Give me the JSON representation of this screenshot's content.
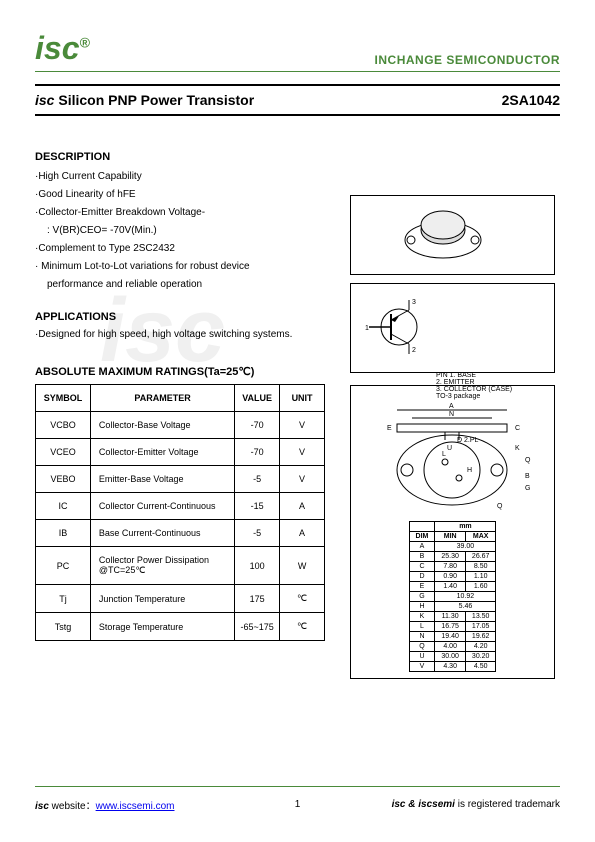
{
  "header": {
    "logo_text": "isc",
    "logo_sup": "®",
    "company": "INCHANGE SEMICONDUCTOR"
  },
  "title": {
    "prefix": "isc",
    "main": " Silicon PNP Power Transistor",
    "part": "2SA1042"
  },
  "description": {
    "heading": "DESCRIPTION",
    "items": [
      "·High Current Capability",
      "·Good Linearity of hFE",
      "·Collector-Emitter Breakdown Voltage-",
      ": V(BR)CEO= -70V(Min.)",
      "·Complement to Type 2SC2432",
      "· Minimum Lot-to-Lot variations for robust device",
      "performance and reliable operation"
    ]
  },
  "applications": {
    "heading": "APPLICATIONS",
    "text": "·Designed for high speed, high voltage switching systems."
  },
  "ratings": {
    "heading": "ABSOLUTE MAXIMUM RATINGS(Ta=25℃)",
    "columns": [
      "SYMBOL",
      "PARAMETER",
      "VALUE",
      "UNIT"
    ],
    "rows": [
      {
        "sym": "VCBO",
        "param": "Collector-Base Voltage",
        "val": "-70",
        "unit": "V"
      },
      {
        "sym": "VCEO",
        "param": "Collector-Emitter Voltage",
        "val": "-70",
        "unit": "V"
      },
      {
        "sym": "VEBO",
        "param": "Emitter-Base Voltage",
        "val": "-5",
        "unit": "V"
      },
      {
        "sym": "IC",
        "param": "Collector Current-Continuous",
        "val": "-15",
        "unit": "A"
      },
      {
        "sym": "IB",
        "param": "Base Current-Continuous",
        "val": "-5",
        "unit": "A"
      },
      {
        "sym": "PC",
        "param": "Collector Power Dissipation @TC=25℃",
        "val": "100",
        "unit": "W"
      },
      {
        "sym": "Tj",
        "param": "Junction Temperature",
        "val": "175",
        "unit": "℃"
      },
      {
        "sym": "Tstg",
        "param": "Storage Temperature",
        "val": "-65~175",
        "unit": "℃"
      }
    ]
  },
  "pinout": {
    "pins": [
      "PIN 1. BASE",
      "2. EMITTER",
      "3. COLLECTOR (CASE)"
    ],
    "pkg": "TO-3 package"
  },
  "dimensions": {
    "unit_label": "mm",
    "columns": [
      "DIM",
      "MIN",
      "MAX"
    ],
    "rows": [
      {
        "dim": "A",
        "min": "",
        "max": "39.00",
        "span": true
      },
      {
        "dim": "B",
        "min": "25.30",
        "max": "26.67"
      },
      {
        "dim": "C",
        "min": "7.80",
        "max": "8.50"
      },
      {
        "dim": "D",
        "min": "0.90",
        "max": "1.10"
      },
      {
        "dim": "E",
        "min": "1.40",
        "max": "1.60"
      },
      {
        "dim": "G",
        "min": "",
        "max": "10.92",
        "span": true
      },
      {
        "dim": "H",
        "min": "",
        "max": "5.46",
        "span": true
      },
      {
        "dim": "K",
        "min": "11.30",
        "max": "13.50"
      },
      {
        "dim": "L",
        "min": "16.75",
        "max": "17.05"
      },
      {
        "dim": "N",
        "min": "19.40",
        "max": "19.62"
      },
      {
        "dim": "Q",
        "min": "4.00",
        "max": "4.20"
      },
      {
        "dim": "U",
        "min": "30.00",
        "max": "30.20"
      },
      {
        "dim": "V",
        "min": "4.30",
        "max": "4.50"
      }
    ]
  },
  "footer": {
    "left_prefix": "isc",
    "left_text": " website：",
    "url": "www.iscsemi.com",
    "page": "1",
    "right_prefix": "isc & iscsemi",
    "right_text": " is registered trademark"
  },
  "colors": {
    "brand": "#4a8a3a",
    "text": "#000000",
    "link": "#0000ee",
    "bg": "#ffffff"
  }
}
